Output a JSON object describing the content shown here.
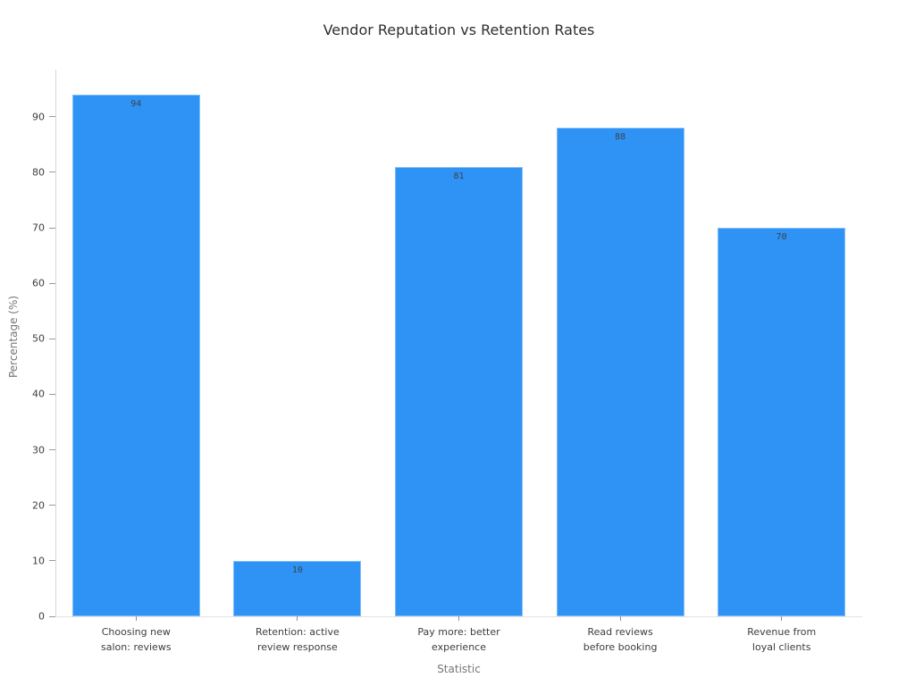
{
  "chart_data": {
    "type": "bar",
    "title": "Vendor Reputation vs Retention Rates",
    "xlabel": "Statistic",
    "ylabel": "Percentage (%)",
    "categories": [
      "Choosing new\nsalon: reviews",
      "Retention: active\nreview response",
      "Pay more: better\nexperience",
      "Read reviews\nbefore booking",
      "Revenue from\nloyal clients"
    ],
    "values": [
      94,
      10,
      81,
      88,
      70
    ],
    "value_labels": [
      "94",
      "10",
      "81",
      "88",
      "70"
    ],
    "yticks": [
      0,
      10,
      20,
      30,
      40,
      50,
      60,
      70,
      80,
      90
    ],
    "ylim": [
      0,
      98.5
    ],
    "grid": false,
    "legend": null,
    "colors": {
      "bar_fill": "#2e93f5",
      "value_label": "#3c434b",
      "title": "#2e2e2e",
      "tick_label": "#3d3d3d",
      "axis_title": "#767676",
      "spine": "#d6d6d6"
    }
  }
}
